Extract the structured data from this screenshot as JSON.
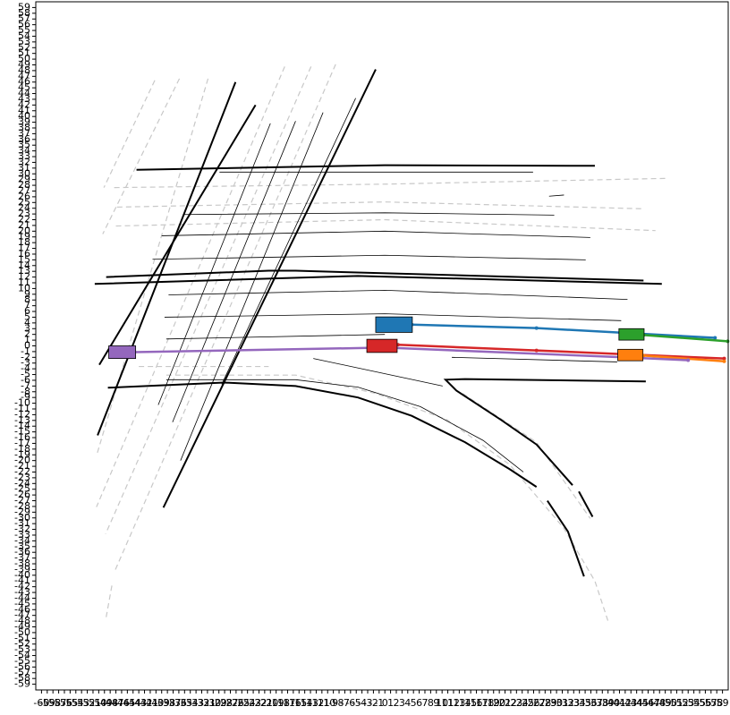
{
  "chart_data": {
    "type": "map",
    "xlim": [
      -61,
      60
    ],
    "ylim": [
      -60,
      60
    ],
    "xticks": [
      -60,
      -59,
      -58,
      -57,
      -56,
      -55,
      -54,
      -53,
      -52,
      -51,
      -50,
      -49,
      -48,
      -47,
      -46,
      -45,
      -44,
      -43,
      -42,
      -41,
      -40,
      -39,
      -38,
      -37,
      -36,
      -35,
      -34,
      -33,
      -32,
      -31,
      -30,
      -29,
      -28,
      -27,
      -26,
      -25,
      -24,
      -23,
      -22,
      -21,
      -20,
      -19,
      -18,
      -17,
      -16,
      -15,
      -14,
      -13,
      -12,
      -11,
      -10,
      -9,
      -8,
      -7,
      -6,
      -5,
      -4,
      -3,
      -2,
      -1,
      0,
      1,
      2,
      3,
      4,
      5,
      6,
      7,
      8,
      9,
      10,
      11,
      12,
      13,
      14,
      15,
      16,
      17,
      18,
      19,
      20,
      21,
      22,
      23,
      24,
      25,
      26,
      27,
      28,
      29,
      30,
      31,
      32,
      33,
      34,
      35,
      36,
      37,
      38,
      39,
      40,
      41,
      42,
      43,
      44,
      45,
      46,
      47,
      48,
      49,
      50,
      51,
      52,
      53,
      54,
      55,
      56,
      57,
      58,
      59
    ],
    "yticks": [
      -59,
      -58,
      -57,
      -56,
      -55,
      -54,
      -53,
      -52,
      -51,
      -50,
      -49,
      -48,
      -47,
      -46,
      -45,
      -44,
      -43,
      -42,
      -41,
      -40,
      -39,
      -38,
      -37,
      -36,
      -35,
      -34,
      -33,
      -32,
      -31,
      -30,
      -29,
      -28,
      -27,
      -26,
      -25,
      -24,
      -23,
      -22,
      -21,
      -20,
      -19,
      -18,
      -17,
      -16,
      -15,
      -14,
      -13,
      -12,
      -11,
      -10,
      -9,
      -8,
      -7,
      -6,
      -5,
      -4,
      -3,
      -2,
      -1,
      0,
      1,
      2,
      3,
      4,
      5,
      6,
      7,
      8,
      9,
      10,
      11,
      12,
      13,
      14,
      15,
      16,
      17,
      18,
      19,
      20,
      21,
      22,
      23,
      24,
      25,
      26,
      27,
      28,
      29,
      30,
      31,
      32,
      33,
      34,
      35,
      36,
      37,
      38,
      39,
      40,
      41,
      42,
      43,
      44,
      45,
      46,
      47,
      48,
      49,
      50,
      51,
      52,
      53,
      54,
      55,
      56,
      57,
      58,
      59
    ],
    "lines": [
      {
        "style": "dashed",
        "x": [
          -40.2,
          -49.1
        ],
        "y": [
          46.3,
          27.6
        ]
      },
      {
        "style": "dashed",
        "x": [
          -35.9,
          -49.3
        ],
        "y": [
          46.6,
          19.5
        ]
      },
      {
        "style": "dashed",
        "x": [
          -30.9,
          -50.4
        ],
        "y": [
          46.6,
          -19.2
        ]
      },
      {
        "style": "dashed",
        "x": [
          -17.5,
          -50.4
        ],
        "y": [
          48.7,
          -28.1
        ]
      },
      {
        "style": "dashed",
        "x": [
          -12.9,
          -48.8
        ],
        "y": [
          48.7,
          -32.8
        ]
      },
      {
        "style": "dashed",
        "x": [
          -8.6,
          -47.3
        ],
        "y": [
          49.1,
          -39.5
        ]
      },
      {
        "style": "dashed",
        "x": [
          -47.7,
          -48.7
        ],
        "y": [
          -41.8,
          -47.3
        ]
      },
      {
        "style": "dashed",
        "x": [
          -47.3,
          0,
          49.0
        ],
        "y": [
          27.6,
          28.2,
          29.2
        ]
      },
      {
        "style": "dashed",
        "x": [
          -46.8,
          0,
          45.2
        ],
        "y": [
          24.2,
          25.1,
          23.9
        ]
      },
      {
        "style": "dashed",
        "x": [
          -47.0,
          0,
          47.3
        ],
        "y": [
          20.9,
          22.0,
          20.1
        ]
      },
      {
        "style": "dashed",
        "x": [
          -43.0,
          -20.3
        ],
        "y": [
          -3.6,
          -3.6
        ]
      },
      {
        "style": "dashed",
        "x": [
          -38.2,
          -15.6,
          -1.6,
          10.9,
          21.8,
          31.2,
          36.7,
          39.0
        ],
        "y": [
          -5.1,
          -5.1,
          -8.3,
          -12.9,
          -20.7,
          -31.7,
          -41.0,
          -48.0
        ]
      },
      {
        "style": "dashed",
        "x": [
          13.6,
          26.5,
          35.9
        ],
        "y": [
          -8.3,
          -16.8,
          -30.1
        ]
      },
      {
        "style": "thin",
        "x": [
          -28.9,
          25.9
        ],
        "y": [
          30.3,
          30.3
        ]
      },
      {
        "style": "thin",
        "x": [
          -35.1,
          0,
          29.6
        ],
        "y": [
          22.9,
          23.2,
          22.8
        ]
      },
      {
        "style": "thin",
        "x": [
          -39.0,
          0,
          35.9
        ],
        "y": [
          19.2,
          20.0,
          18.9
        ]
      },
      {
        "style": "thin",
        "x": [
          -40.6,
          0,
          35.1
        ],
        "y": [
          15.1,
          15.8,
          15.0
        ]
      },
      {
        "style": "thin",
        "x": [
          -37.8,
          0,
          42.4
        ],
        "y": [
          8.9,
          9.7,
          8.1
        ]
      },
      {
        "style": "thin",
        "x": [
          -38.5,
          0,
          41.3
        ],
        "y": [
          5.0,
          5.6,
          4.4
        ]
      },
      {
        "style": "thin",
        "x": [
          -38.2,
          0
        ],
        "y": [
          1.2,
          2.0
        ]
      },
      {
        "style": "thin",
        "x": [
          -38.2,
          -15.6,
          -4.7,
          6.2,
          17.2,
          24.2
        ],
        "y": [
          -5.9,
          -5.9,
          -7.2,
          -10.6,
          -16.5,
          -22.0
        ]
      },
      {
        "style": "thin",
        "x": [
          -12.5,
          10.1
        ],
        "y": [
          -2.2,
          -7.0
        ]
      },
      {
        "style": "thin",
        "x": [
          11.7,
          40.6
        ],
        "y": [
          -2.0,
          -2.8
        ]
      },
      {
        "style": "thin",
        "x": [
          -20.0,
          -39.6
        ],
        "y": [
          38.8,
          -10.3
        ]
      },
      {
        "style": "thin",
        "x": [
          -15.6,
          -37.1
        ],
        "y": [
          39.2,
          -13.3
        ]
      },
      {
        "style": "thin",
        "x": [
          -10.8,
          -35.7
        ],
        "y": [
          40.7,
          -20.0
        ]
      },
      {
        "style": "thin",
        "x": [
          -5.1,
          -28.5
        ],
        "y": [
          43.2,
          -6.7
        ]
      },
      {
        "style": "thick",
        "x": [
          -26.1,
          -50.2
        ],
        "y": [
          46.0,
          -15.6
        ]
      },
      {
        "style": "thick",
        "x": [
          -22.6,
          -49.9
        ],
        "y": [
          42.0,
          -3.3
        ]
      },
      {
        "style": "thick",
        "x": [
          -1.6,
          -38.7
        ],
        "y": [
          48.2,
          -28.2
        ]
      },
      {
        "style": "thick",
        "x": [
          -43.4,
          0,
          36.7
        ],
        "y": [
          30.7,
          31.5,
          31.4
        ]
      },
      {
        "style": "thick",
        "x": [
          -48.7,
          -20.3,
          -15.6,
          45.2
        ],
        "y": [
          12.0,
          13.1,
          13.1,
          11.4
        ]
      },
      {
        "style": "thick",
        "x": [
          -50.7,
          -4.7,
          48.4
        ],
        "y": [
          10.8,
          12.2,
          10.8
        ]
      },
      {
        "style": "thick",
        "x": [
          -48.4,
          -28.1,
          -15.6,
          -4.7,
          4.7,
          14.0,
          21.8,
          26.5
        ],
        "y": [
          -7.3,
          -6.4,
          -7.0,
          -9.0,
          -12.2,
          -16.8,
          -21.5,
          -24.6
        ]
      },
      {
        "style": "thick",
        "x": [
          45.6,
          14.0,
          10.6,
          12.5,
          20.3,
          26.5,
          32.8
        ],
        "y": [
          -6.2,
          -5.8,
          -5.9,
          -7.8,
          -12.9,
          -17.2,
          -24.3
        ]
      },
      {
        "style": "thick",
        "x": [
          28.4,
          32.0,
          34.8
        ],
        "y": [
          -27.0,
          -32.4,
          -40.2
        ]
      },
      {
        "style": "thick",
        "x": [
          33.9,
          36.3
        ],
        "y": [
          -25.4,
          -29.8
        ]
      },
      {
        "style": "thin",
        "x": [
          28.7,
          31.3
        ],
        "y": [
          26.1,
          26.3
        ]
      }
    ],
    "trajectories": [
      {
        "color": "#1f77b4",
        "x": [
          4.7,
          26.5,
          57.7
        ],
        "y": [
          3.7,
          3.1,
          1.4
        ]
      },
      {
        "color": "#2ca02c",
        "x": [
          45.2,
          59.9
        ],
        "y": [
          1.9,
          0.8
        ]
      },
      {
        "color": "#d62728",
        "x": [
          2.3,
          26.5,
          59.3
        ],
        "y": [
          0.2,
          -0.8,
          -2.2
        ]
      },
      {
        "color": "#ff7f0e",
        "x": [
          45.2,
          59.3
        ],
        "y": [
          -1.7,
          -2.7
        ]
      },
      {
        "color": "#9467bd",
        "x": [
          -43.7,
          0,
          42.1,
          53.0
        ],
        "y": [
          -1.1,
          -0.3,
          -2.0,
          -2.5
        ]
      }
    ],
    "vehicles": [
      {
        "color": "#1f77b4",
        "x": 1.6,
        "y": 3.7,
        "width": 6.4,
        "height": 2.7
      },
      {
        "color": "#d62728",
        "x": -0.5,
        "y": 0,
        "width": 5.3,
        "height": 2.3
      },
      {
        "color": "#9467bd",
        "x": -45.9,
        "y": -1.1,
        "width": 4.7,
        "height": 2.2
      },
      {
        "color": "#2ca02c",
        "x": 43.1,
        "y": 2.0,
        "width": 4.4,
        "height": 2.0
      },
      {
        "color": "#ff7f0e",
        "x": 42.9,
        "y": -1.6,
        "width": 4.4,
        "height": 2.0
      }
    ]
  }
}
